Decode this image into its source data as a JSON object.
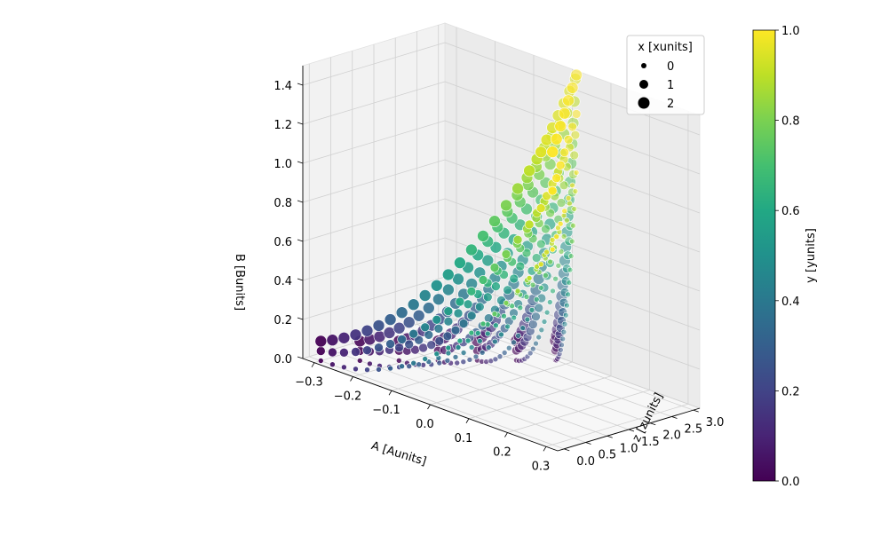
{
  "chart_data": {
    "type": "scatter",
    "projection": "3d",
    "grid": true,
    "colormap": "viridis",
    "x_axis": {
      "label": "A [Aunits]",
      "range": [
        -0.33,
        0.33
      ],
      "ticks": [
        "−0.3",
        "−0.2",
        "−0.1",
        "0.0",
        "0.1",
        "0.2",
        "0.3"
      ],
      "tick_values": [
        -0.3,
        -0.2,
        -0.1,
        0.0,
        0.1,
        0.2,
        0.3
      ]
    },
    "y_axis": {
      "label": "z [zunits]",
      "range": [
        -0.15,
        3.15
      ],
      "ticks": [
        "0.0",
        "0.5",
        "1.0",
        "1.5",
        "2.0",
        "2.5",
        "3.0"
      ],
      "tick_values": [
        0.0,
        0.5,
        1.0,
        1.5,
        2.0,
        2.5,
        3.0
      ]
    },
    "z_axis": {
      "label": "B [Bunits]",
      "range": [
        0.0,
        1.5
      ],
      "ticks": [
        "0.0",
        "0.2",
        "0.4",
        "0.6",
        "0.8",
        "1.0",
        "1.2",
        "1.4"
      ],
      "tick_values": [
        0.0,
        0.2,
        0.4,
        0.6,
        0.8,
        1.0,
        1.2,
        1.4
      ]
    },
    "size_legend": {
      "title": "x [xunits]",
      "placement": "top-right",
      "entries": [
        {
          "label": "0",
          "value": 0
        },
        {
          "label": "1",
          "value": 1
        },
        {
          "label": "2",
          "value": 2
        }
      ]
    },
    "colorbar": {
      "label": "y [yunits]",
      "ticks": [
        "0.0",
        "0.2",
        "0.4",
        "0.6",
        "0.8",
        "1.0"
      ],
      "tick_values": [
        0.0,
        0.2,
        0.4,
        0.6,
        0.8,
        1.0
      ],
      "range": [
        0.0,
        1.0
      ]
    },
    "sample_z_values": [
      0.0,
      0.5,
      1.0,
      1.5,
      2.0,
      2.5,
      3.0
    ],
    "sample_x_values": [
      0,
      1,
      2
    ],
    "sample_y_values": [
      0.0,
      0.05,
      0.1,
      0.15,
      0.2,
      0.25,
      0.3,
      0.35,
      0.4,
      0.45,
      0.5,
      0.55,
      0.6,
      0.65,
      0.7,
      0.75,
      0.8,
      0.85,
      0.9,
      0.95,
      1.0
    ],
    "relation": "A = (2*y - 1) * 0.3 * (1 - z/3.3); B = (y^2 + 0.5*y*x/2) * 1.0 + 0.05*x; color = y; marker size = x"
  }
}
